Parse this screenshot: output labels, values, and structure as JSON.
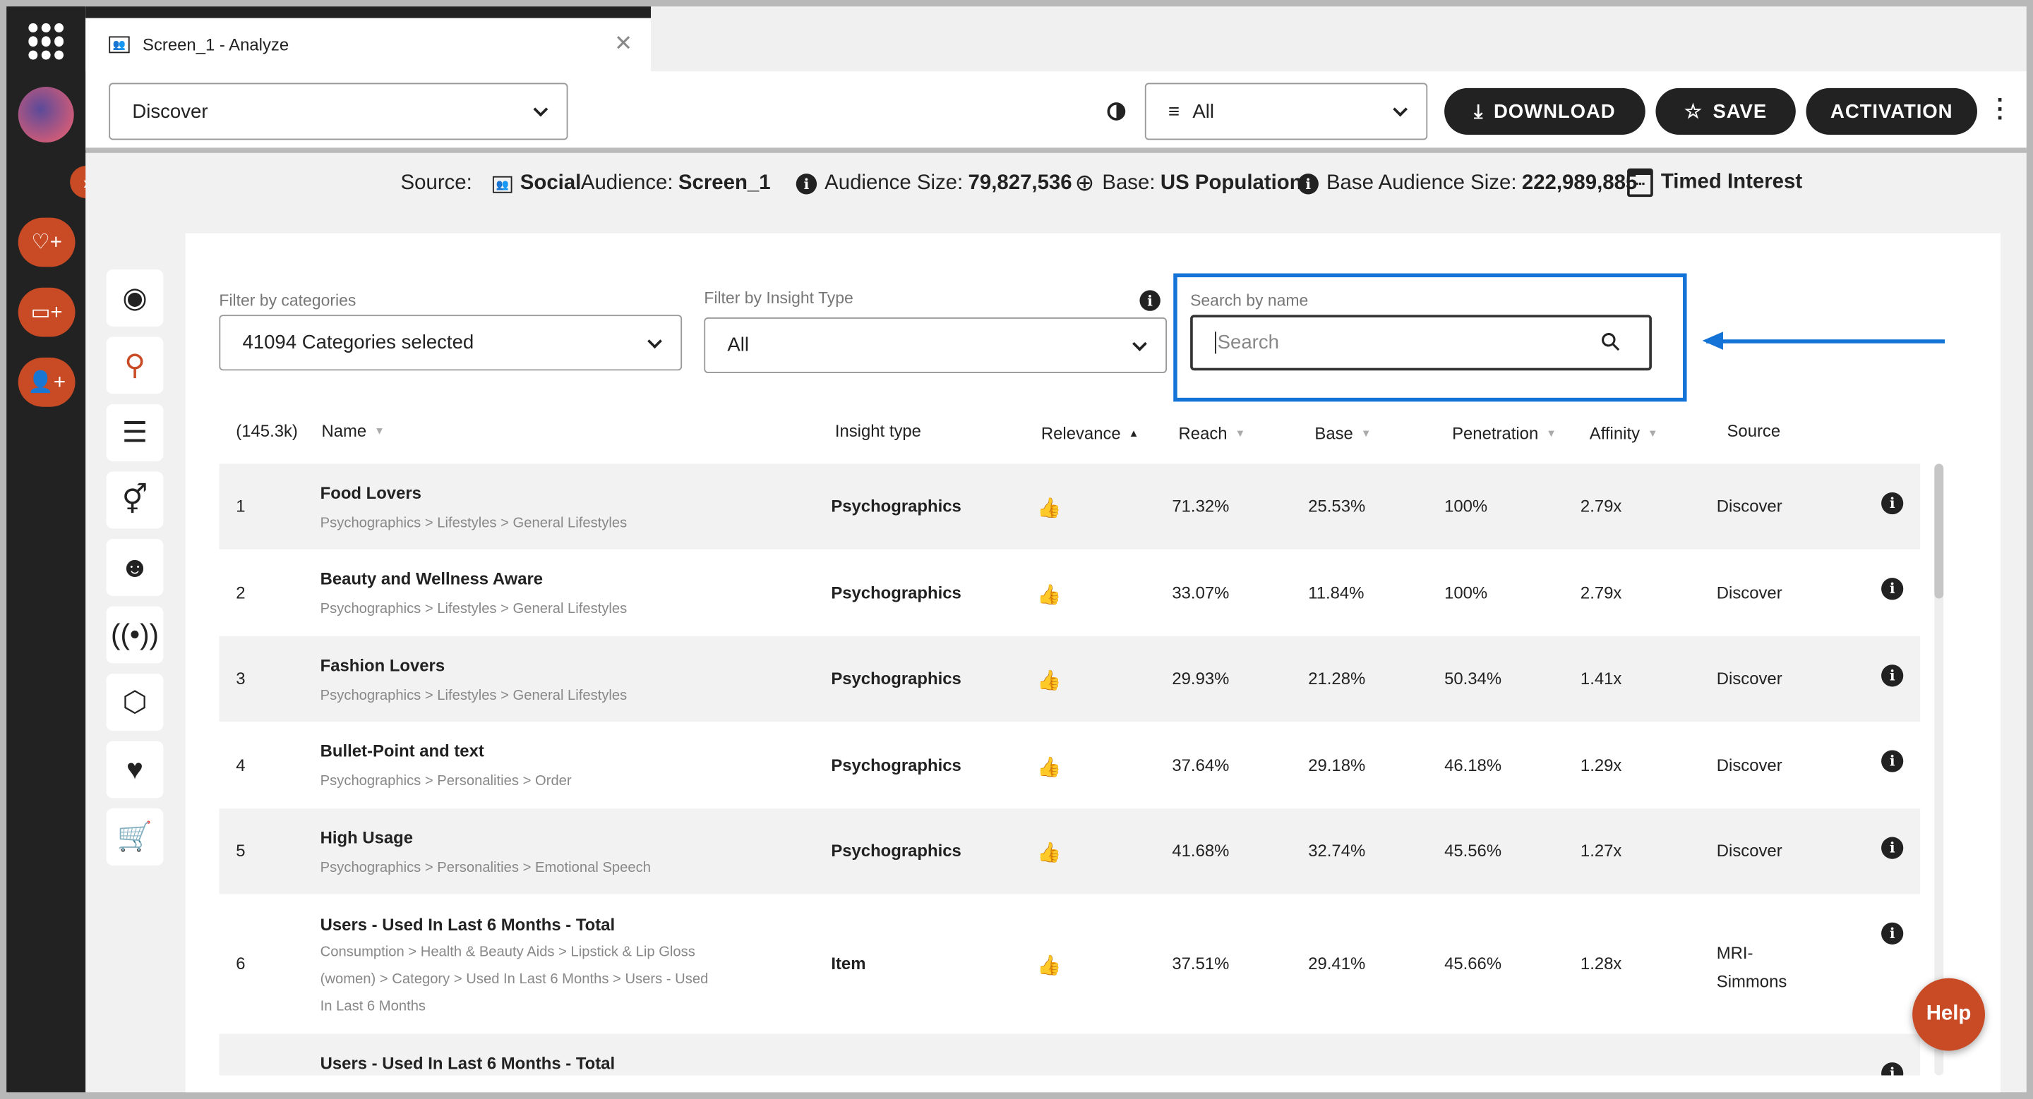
{
  "tab": {
    "title": "Screen_1 - Analyze",
    "close": "✕"
  },
  "toolbar": {
    "module_select": "Discover",
    "filter_select": "All",
    "download": "DOWNLOAD",
    "save": "SAVE",
    "activation": "ACTIVATION"
  },
  "infobar": {
    "source_label": "Source:",
    "source_value": "Social",
    "audience_label": "Audience:",
    "audience_value": "Screen_1",
    "audience_size_label": "Audience Size:",
    "audience_size_value": "79,827,536",
    "base_label": "Base:",
    "base_value": "US Population",
    "base_size_label": "Base Audience Size:",
    "base_size_value": "222,989,885",
    "timed": "Timed Interest"
  },
  "filters": {
    "categories_label": "Filter by categories",
    "categories_value": "41094 Categories selected",
    "insight_label": "Filter by Insight Type",
    "insight_value": "All",
    "search_label": "Search by name",
    "search_placeholder": "Search"
  },
  "table": {
    "count": "(145.3k)",
    "headers": {
      "name": "Name",
      "insight": "Insight type",
      "relevance": "Relevance",
      "reach": "Reach",
      "base": "Base",
      "penetration": "Penetration",
      "affinity": "Affinity",
      "source": "Source"
    },
    "rows": [
      {
        "idx": "1",
        "name": "Food Lovers",
        "path": "Psychographics > Lifestyles > General Lifestyles",
        "insight": "Psychographics",
        "reach": "71.32%",
        "base": "25.53%",
        "penetration": "100%",
        "affinity": "2.79x",
        "source": "Discover"
      },
      {
        "idx": "2",
        "name": "Beauty and Wellness Aware",
        "path": "Psychographics > Lifestyles > General Lifestyles",
        "insight": "Psychographics",
        "reach": "33.07%",
        "base": "11.84%",
        "penetration": "100%",
        "affinity": "2.79x",
        "source": "Discover"
      },
      {
        "idx": "3",
        "name": "Fashion Lovers",
        "path": "Psychographics > Lifestyles > General Lifestyles",
        "insight": "Psychographics",
        "reach": "29.93%",
        "base": "21.28%",
        "penetration": "50.34%",
        "affinity": "1.41x",
        "source": "Discover"
      },
      {
        "idx": "4",
        "name": "Bullet-Point and text",
        "path": "Psychographics > Personalities > Order",
        "insight": "Psychographics",
        "reach": "37.64%",
        "base": "29.18%",
        "penetration": "46.18%",
        "affinity": "1.29x",
        "source": "Discover"
      },
      {
        "idx": "5",
        "name": "High Usage",
        "path": "Psychographics > Personalities > Emotional Speech",
        "insight": "Psychographics",
        "reach": "41.68%",
        "base": "32.74%",
        "penetration": "45.56%",
        "affinity": "1.27x",
        "source": "Discover"
      },
      {
        "idx": "6",
        "name": "Users - Used In Last 6 Months - Total",
        "path": "Consumption > Health & Beauty Aids > Lipstick & Lip Gloss (women) > Category > Used In Last 6 Months > Users - Used In Last 6 Months",
        "insight": "Item",
        "reach": "37.51%",
        "base": "29.41%",
        "penetration": "45.66%",
        "affinity": "1.28x",
        "source": "MRI-Simmons"
      },
      {
        "idx": "",
        "name": "Users - Used In Last 6 Months - Total"
      }
    ]
  },
  "help": "Help",
  "colors": {
    "accent": "#c94b25",
    "highlight": "#1473d6",
    "rail": "#222222"
  }
}
